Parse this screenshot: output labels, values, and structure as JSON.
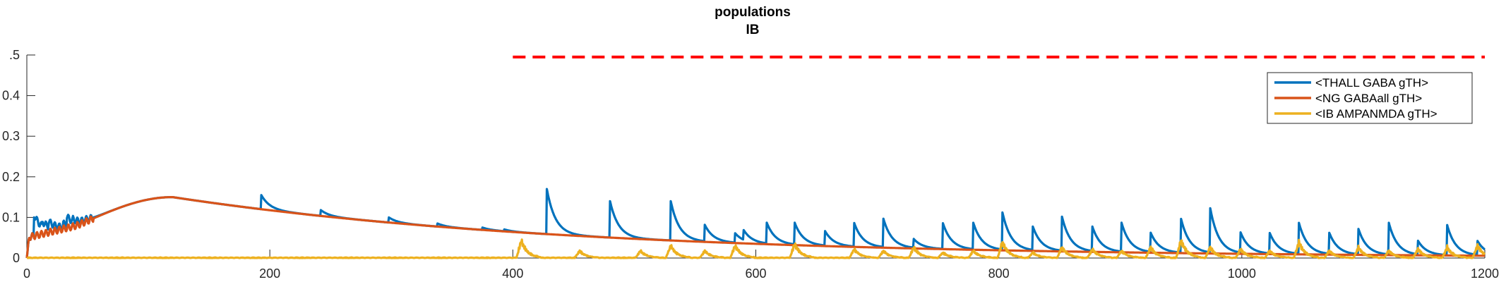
{
  "chart_data": {
    "type": "line",
    "title": [
      "populations",
      "IB"
    ],
    "xlabel": "",
    "ylabel": "",
    "xlim": [
      0,
      1200
    ],
    "ylim": [
      0,
      0.5
    ],
    "xticks": [
      "0",
      "200",
      "400",
      "600",
      "800",
      "1000",
      "1200"
    ],
    "yticks": [
      ".5",
      "0.4",
      "0.3",
      "0.2",
      "0.1",
      "0"
    ],
    "grid": false,
    "legend_position": "top-right",
    "stimulus": {
      "style": "dashed",
      "color": "#ff0000",
      "x_start": 400,
      "x_end": 1200,
      "y": 0.495
    },
    "series": [
      {
        "name": "<THALL GABA gTH>",
        "color": "#0072bd",
        "baseline": "ng",
        "spikes": [
          [
            6,
            0.1
          ],
          [
            13,
            0.07
          ],
          [
            18,
            0.07
          ],
          [
            24,
            0.06
          ],
          [
            30,
            0.085
          ],
          [
            33,
            0.09
          ],
          [
            38,
            0.09
          ],
          [
            42,
            0.085
          ],
          [
            48,
            0.09
          ],
          [
            193,
            0.155
          ],
          [
            242,
            0.118
          ],
          [
            298,
            0.1
          ],
          [
            338,
            0.085
          ],
          [
            375,
            0.075
          ],
          [
            393,
            0.07
          ],
          [
            428,
            0.17
          ],
          [
            480,
            0.14
          ],
          [
            530,
            0.14
          ],
          [
            558,
            0.08
          ],
          [
            583,
            0.06
          ],
          [
            590,
            0.06
          ],
          [
            609,
            0.085
          ],
          [
            632,
            0.085
          ],
          [
            657,
            0.065
          ],
          [
            681,
            0.085
          ],
          [
            705,
            0.095
          ],
          [
            730,
            0.045
          ],
          [
            754,
            0.085
          ],
          [
            779,
            0.085
          ],
          [
            803,
            0.11
          ],
          [
            828,
            0.075
          ],
          [
            852,
            0.1
          ],
          [
            877,
            0.075
          ],
          [
            901,
            0.085
          ],
          [
            925,
            0.06
          ],
          [
            950,
            0.095
          ],
          [
            974,
            0.12
          ],
          [
            999,
            0.06
          ],
          [
            1023,
            0.06
          ],
          [
            1047,
            0.085
          ],
          [
            1072,
            0.06
          ],
          [
            1096,
            0.07
          ],
          [
            1121,
            0.085
          ],
          [
            1145,
            0.04
          ],
          [
            1169,
            0.08
          ],
          [
            1194,
            0.04
          ]
        ]
      },
      {
        "name": "<NG GABAall gTH>",
        "color": "#d95319",
        "peak": {
          "x": 120,
          "y": 0.15
        },
        "wiggle_region": [
          0,
          55
        ]
      },
      {
        "name": "<IB AMPANMDA gTH>",
        "color": "#edb120",
        "bursts": [
          [
            407,
            0.05
          ],
          [
            455,
            0.02
          ],
          [
            505,
            0.02
          ],
          [
            530,
            0.035
          ],
          [
            558,
            0.02
          ],
          [
            583,
            0.035
          ],
          [
            632,
            0.04
          ],
          [
            681,
            0.025
          ],
          [
            705,
            0.02
          ],
          [
            730,
            0.03
          ],
          [
            754,
            0.015
          ],
          [
            779,
            0.02
          ],
          [
            803,
            0.045
          ],
          [
            828,
            0.015
          ],
          [
            852,
            0.03
          ],
          [
            877,
            0.025
          ],
          [
            901,
            0.02
          ],
          [
            925,
            0.03
          ],
          [
            950,
            0.05
          ],
          [
            974,
            0.03
          ],
          [
            999,
            0.025
          ],
          [
            1023,
            0.02
          ],
          [
            1047,
            0.045
          ],
          [
            1072,
            0.02
          ],
          [
            1096,
            0.03
          ],
          [
            1121,
            0.02
          ],
          [
            1145,
            0.025
          ],
          [
            1169,
            0.03
          ],
          [
            1194,
            0.035
          ]
        ]
      }
    ]
  }
}
